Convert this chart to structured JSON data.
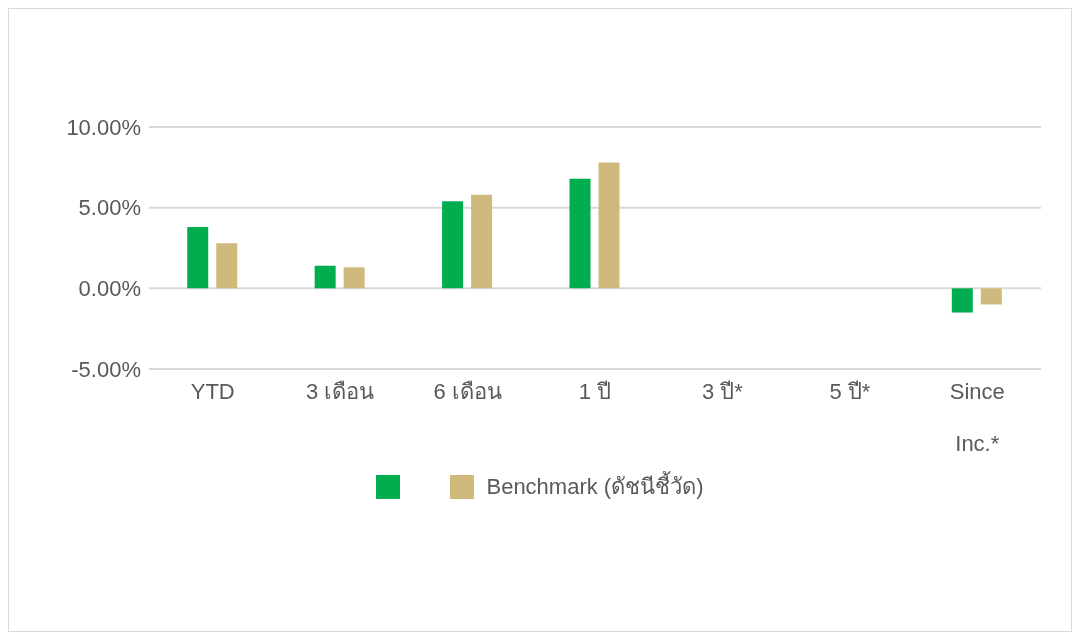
{
  "chart_data": {
    "type": "bar",
    "categories": [
      "YTD",
      "3 เดือน",
      "6 เดือน",
      "1 ปี",
      "3 ปี*",
      "5 ปี*",
      "Since Inc.*"
    ],
    "series": [
      {
        "color": "#00ad4f",
        "values": [
          3.8,
          1.4,
          5.4,
          6.8,
          null,
          null,
          -1.5
        ]
      },
      {
        "name": "Benchmark (ดัชนีชี้วัด)",
        "color": "#cfb97c",
        "values": [
          2.8,
          1.3,
          5.8,
          7.8,
          null,
          null,
          -1.0
        ]
      }
    ],
    "ylim": [
      -5,
      10
    ],
    "yticks": [
      {
        "value": -5,
        "label": "-5.00%"
      },
      {
        "value": 0,
        "label": "0.00%"
      },
      {
        "value": 5,
        "label": "5.00%"
      },
      {
        "value": 10,
        "label": "10.00%"
      }
    ],
    "grid": "y",
    "legend": "bottom"
  }
}
